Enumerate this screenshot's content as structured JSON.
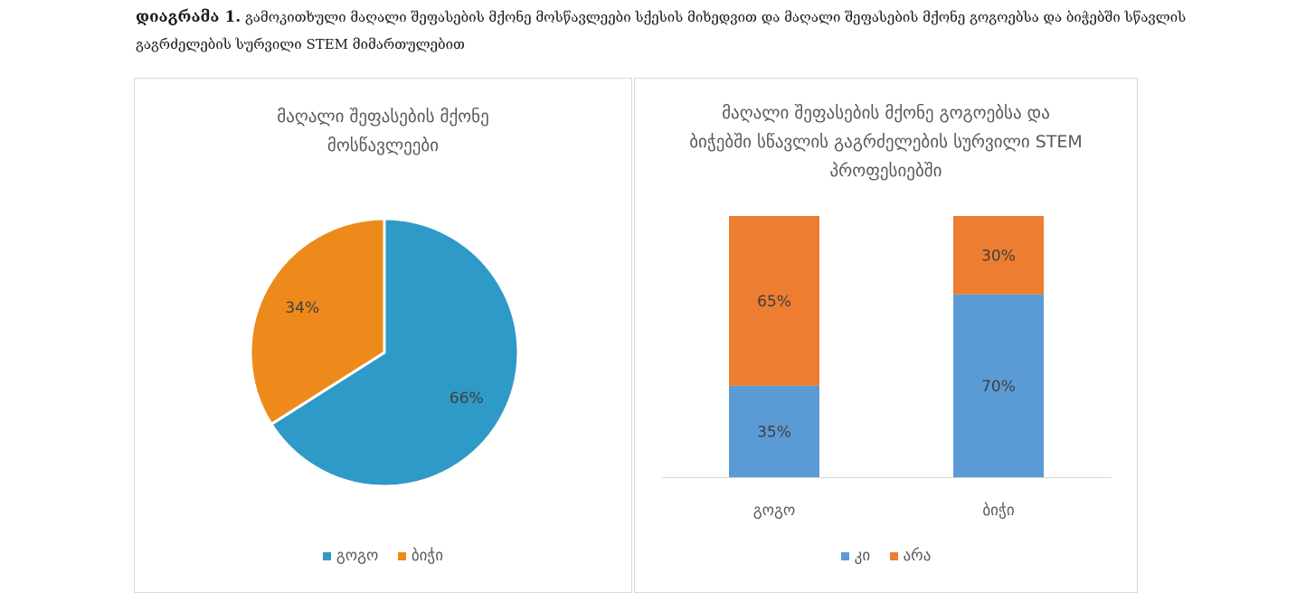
{
  "caption": {
    "lead": "დიაგრამა 1.",
    "text": "გამოკითხული მაღალი შეფასების მქონე მოსწავლეები სქესის მიხედვით და მაღალი შეფასების მქონე გოგოებსა და ბიჭებში სწავლის გაგრძელების სურვილი STEM მიმართულებით"
  },
  "chart_data": [
    {
      "type": "pie",
      "title": "მაღალი შეფასების მქონე მოსწავლეები",
      "slices": [
        {
          "name": "გოგო",
          "value": 66,
          "label": "66%",
          "color": "#2E9AC7"
        },
        {
          "name": "ბიჭი",
          "value": 34,
          "label": "34%",
          "color": "#EE8A1C"
        }
      ],
      "legend": "bottom"
    },
    {
      "type": "bar",
      "stacked": true,
      "percent": true,
      "title": "მაღალი შეფასების მქონე გოგოებსა და ბიჭებში სწავლის გაგრძელების სურვილი STEM პროფესიებში",
      "categories": [
        "გოგო",
        "ბიჭი"
      ],
      "series": [
        {
          "name": "კი",
          "values": [
            35,
            70
          ],
          "labels": [
            "35%",
            "70%"
          ],
          "color": "#5B9BD5"
        },
        {
          "name": "არა",
          "values": [
            65,
            30
          ],
          "labels": [
            "65%",
            "30%"
          ],
          "color": "#ED7D31"
        }
      ],
      "ylim": [
        0,
        100
      ],
      "legend": "bottom",
      "grid": false
    }
  ]
}
